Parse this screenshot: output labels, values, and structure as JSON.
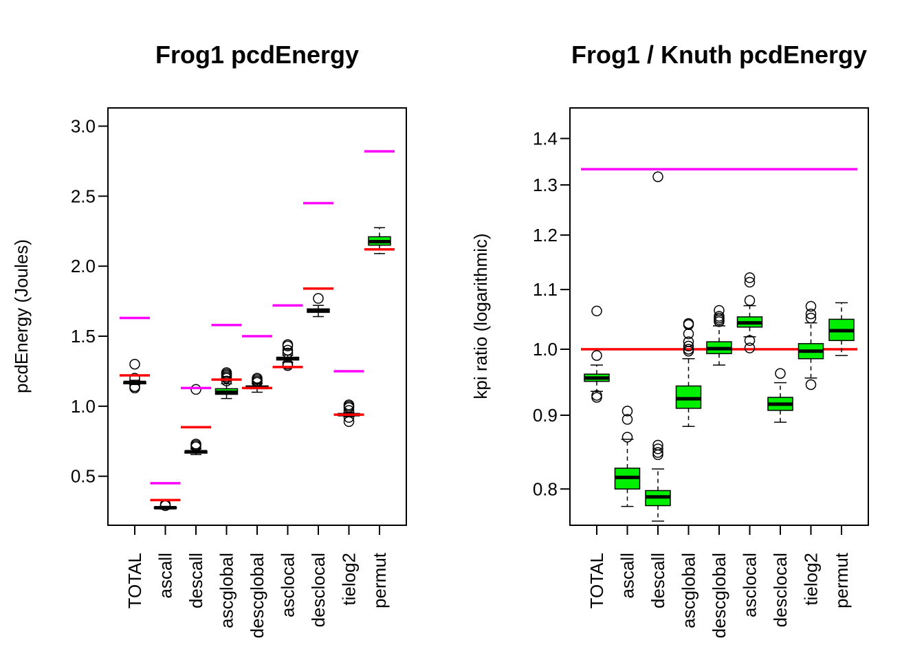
{
  "chart_data": [
    {
      "type": "box",
      "title": "Frog1 pcdEnergy",
      "ylabel": "pcdEnergy (Joules)",
      "ylim": [
        0.15,
        3.13
      ],
      "yticks": [
        "0.5",
        "1.0",
        "1.5",
        "2.0",
        "2.5",
        "3.0"
      ],
      "log_scale": false,
      "categories": [
        "TOTAL",
        "ascall",
        "descall",
        "ascglobal",
        "descglobal",
        "asclocal",
        "desclocal",
        "tielog2",
        "permut"
      ],
      "colors": {
        "box_fill": "#00ee00",
        "red_line": "#ff0000",
        "magenta_line": "#ff00ff"
      },
      "boxes": [
        {
          "q1": 1.16,
          "median": 1.17,
          "q3": 1.175,
          "whisker_low": 1.155,
          "whisker_high": 1.185,
          "outliers": [
            1.3,
            1.2,
            1.14,
            1.13
          ]
        },
        {
          "q1": 0.27,
          "median": 0.275,
          "q3": 0.28,
          "whisker_low": 0.265,
          "whisker_high": 0.285,
          "outliers": [
            0.3,
            0.29
          ]
        },
        {
          "q1": 0.665,
          "median": 0.675,
          "q3": 0.68,
          "whisker_low": 0.655,
          "whisker_high": 0.695,
          "outliers": [
            1.12,
            0.73,
            0.72,
            0.71
          ]
        },
        {
          "q1": 1.085,
          "median": 1.1,
          "q3": 1.125,
          "whisker_low": 1.055,
          "whisker_high": 1.16,
          "outliers": [
            1.24,
            1.23,
            1.22,
            1.21,
            1.2,
            1.18
          ]
        },
        {
          "q1": 1.125,
          "median": 1.135,
          "q3": 1.145,
          "whisker_low": 1.1,
          "whisker_high": 1.16,
          "outliers": [
            1.2,
            1.19,
            1.18,
            1.17
          ]
        },
        {
          "q1": 1.33,
          "median": 1.34,
          "q3": 1.35,
          "whisker_low": 1.315,
          "whisker_high": 1.365,
          "outliers": [
            1.44,
            1.43,
            1.4,
            1.38,
            1.3,
            1.29
          ]
        },
        {
          "q1": 1.67,
          "median": 1.685,
          "q3": 1.695,
          "whisker_low": 1.64,
          "whisker_high": 1.72,
          "outliers": [
            1.77
          ]
        },
        {
          "q1": 0.935,
          "median": 0.94,
          "q3": 0.945,
          "whisker_low": 0.925,
          "whisker_high": 0.955,
          "outliers": [
            1.01,
            1.0,
            0.99,
            0.97,
            0.92,
            0.89
          ]
        },
        {
          "q1": 2.15,
          "median": 2.175,
          "q3": 2.21,
          "whisker_low": 2.09,
          "whisker_high": 2.275,
          "outliers": []
        }
      ],
      "red_lines": [
        1.22,
        0.33,
        0.85,
        1.19,
        1.13,
        1.28,
        1.84,
        0.94,
        2.12
      ],
      "magenta_lines": [
        1.63,
        0.45,
        1.13,
        1.58,
        1.5,
        1.72,
        2.45,
        1.25,
        2.82
      ]
    },
    {
      "type": "box",
      "title": "Frog1 / Knuth pcdEnergy",
      "ylabel": "kpi ratio (logarithmic)",
      "ylim": [
        0.755,
        1.47
      ],
      "yticks": [
        "0.8",
        "0.9",
        "1.0",
        "1.1",
        "1.2",
        "1.3",
        "1.4"
      ],
      "log_scale": true,
      "categories": [
        "TOTAL",
        "ascall",
        "descall",
        "ascglobal",
        "descglobal",
        "asclocal",
        "desclocal",
        "tielog2",
        "permut"
      ],
      "colors": {
        "box_fill": "#00ee00",
        "red_line": "#ff0000",
        "magenta_line": "#ff00ff"
      },
      "boxes": [
        {
          "q1": 0.95,
          "median": 0.955,
          "q3": 0.961,
          "whisker_low": 0.935,
          "whisker_high": 0.975,
          "outliers": [
            1.063,
            0.99,
            0.929,
            0.926
          ]
        },
        {
          "q1": 0.8,
          "median": 0.815,
          "q3": 0.827,
          "whisker_low": 0.778,
          "whisker_high": 0.866,
          "outliers": [
            0.906,
            0.894,
            0.869
          ]
        },
        {
          "q1": 0.779,
          "median": 0.79,
          "q3": 0.798,
          "whisker_low": 0.76,
          "whisker_high": 0.826,
          "outliers": [
            1.317,
            0.858,
            0.853,
            0.848,
            0.845
          ]
        },
        {
          "q1": 0.91,
          "median": 0.924,
          "q3": 0.943,
          "whisker_low": 0.884,
          "whisker_high": 0.985,
          "outliers": [
            1.042,
            1.04,
            1.025,
            1.012,
            1.005,
            1.0,
            0.997
          ]
        },
        {
          "q1": 0.993,
          "median": 1.001,
          "q3": 1.012,
          "whisker_low": 0.975,
          "whisker_high": 1.038,
          "outliers": [
            1.064,
            1.054,
            1.051,
            1.048,
            1.045
          ]
        },
        {
          "q1": 1.036,
          "median": 1.043,
          "q3": 1.053,
          "whisker_low": 1.02,
          "whisker_high": 1.072,
          "outliers": [
            1.121,
            1.113,
            1.081,
            1.014,
            1.002
          ]
        },
        {
          "q1": 0.907,
          "median": 0.916,
          "q3": 0.926,
          "whisker_low": 0.89,
          "whisker_high": 0.948,
          "outliers": [
            0.962
          ]
        },
        {
          "q1": 0.985,
          "median": 0.997,
          "q3": 1.009,
          "whisker_low": 0.955,
          "whisker_high": 1.043,
          "outliers": [
            1.071,
            1.058,
            1.051,
            0.945
          ]
        },
        {
          "q1": 1.014,
          "median": 1.03,
          "q3": 1.049,
          "whisker_low": 0.99,
          "whisker_high": 1.077,
          "outliers": []
        }
      ],
      "red_hline": 1.0,
      "magenta_hline": 1.333
    }
  ]
}
